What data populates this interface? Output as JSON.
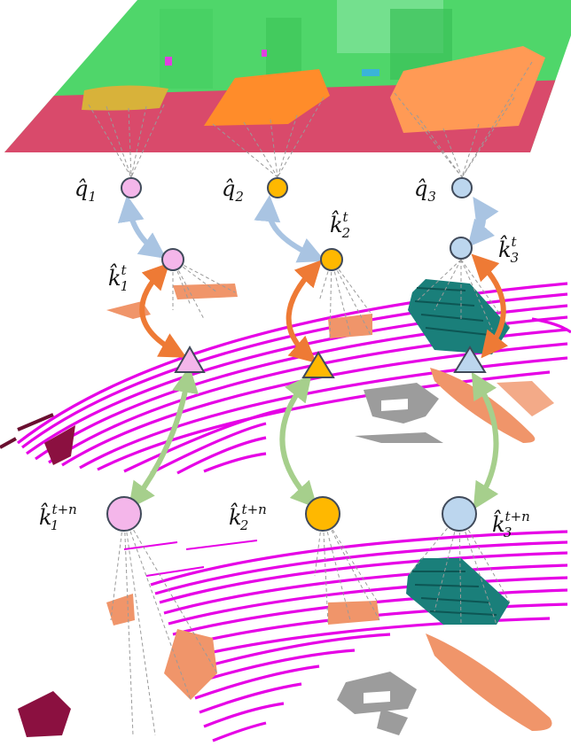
{
  "colors": {
    "query_1": "#f4b6ea",
    "query_2": "#ffb800",
    "query_3": "#bcd6ee",
    "seg_road": "#d94a6b",
    "seg_building": "#4fd66a",
    "seg_car_yellow": "#d8b23a",
    "seg_car_orange": "#ff8c2a",
    "lidar_ground": "#e600e6",
    "lidar_object": "#f0956a",
    "lidar_car_teal": "#1a7f7a",
    "lidar_dark": "#8b1040",
    "lidar_gray": "#999999",
    "arrow_blue": "#a9c4e2",
    "arrow_orange": "#ee7a35",
    "arrow_green": "#a6cf8c",
    "dashed": "#9a9a9a"
  },
  "labels": {
    "q1": {
      "base": "q̂",
      "sub": "1"
    },
    "q2": {
      "base": "q̂",
      "sub": "2"
    },
    "q3": {
      "base": "q̂",
      "sub": "3"
    },
    "k1t": {
      "base": "k̂",
      "sub": "1",
      "sup": "t"
    },
    "k2t": {
      "base": "k̂",
      "sub": "2",
      "sup": "t"
    },
    "k3t": {
      "base": "k̂",
      "sub": "3",
      "sup": "t"
    },
    "k1tn": {
      "base": "k̂",
      "sub": "1",
      "sup": "t+n"
    },
    "k2tn": {
      "base": "k̂",
      "sub": "2",
      "sup": "t+n"
    },
    "k3tn": {
      "base": "k̂",
      "sub": "3",
      "sup": "t+n"
    }
  }
}
